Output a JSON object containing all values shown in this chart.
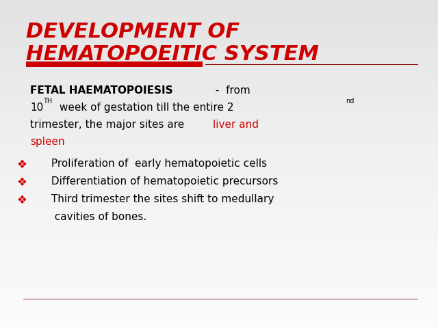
{
  "title_line1": "DEVELOPMENT OF",
  "title_line2": "HEMATOPOEITIC SYSTEM",
  "title_color": "#CC0000",
  "red_bar_color": "#CC0000",
  "text_color": "#000000",
  "red_text_color": "#CC0000",
  "bullet_color": "#CC0000",
  "font_size_title": 22,
  "font_size_body": 11,
  "font_size_bullet": 11,
  "font_size_superscript": 7,
  "bullet_symbol": "❖",
  "bullet_items": [
    " Proliferation of  early hematopoietic cells",
    " Differentiation of hematopoietic precursors",
    " Third trimester the sites shift to medullary",
    "  cavities of bones."
  ]
}
